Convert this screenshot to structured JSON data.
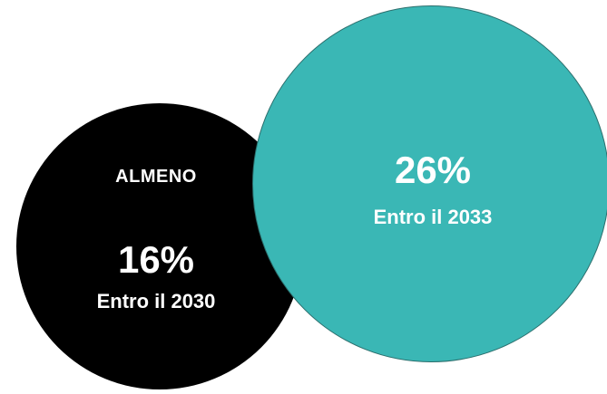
{
  "left_circle": {
    "color": "#000000",
    "qualifier": "ALMENO",
    "value": "16%",
    "caption": "Entro il 2030"
  },
  "right_circle": {
    "color": "#3ab7b5",
    "value": "26%",
    "caption": "Entro il 2033"
  }
}
